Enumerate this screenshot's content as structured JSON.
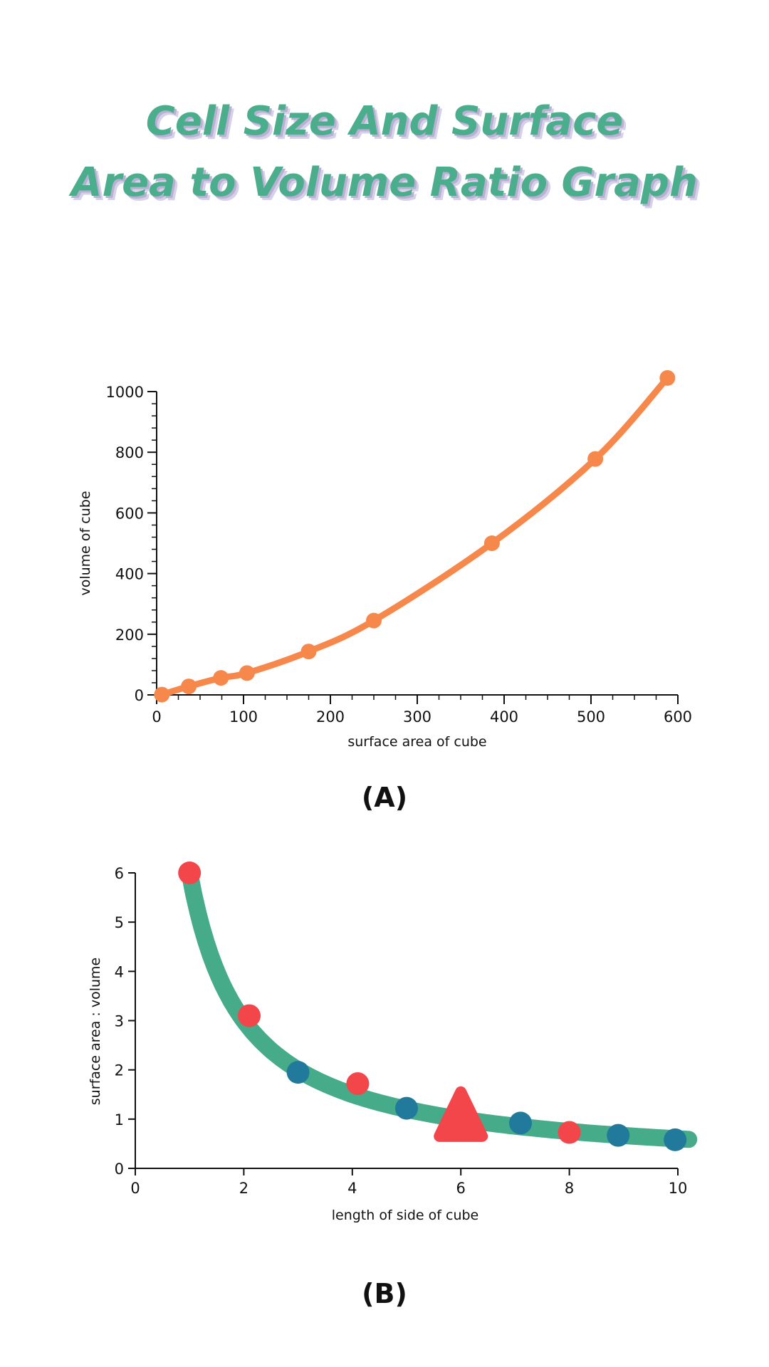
{
  "title": {
    "line1": "Cell Size And Surface",
    "line2": "Area to Volume Ratio Graph"
  },
  "colors": {
    "title": "#4aae8c",
    "title_shadow": "#b9b0d4",
    "chart_a_line": "#f5884a",
    "chart_b_line": "#45ab88",
    "chart_b_red": "#f2464a",
    "chart_b_blue": "#217a9b"
  },
  "chart_data": [
    {
      "type": "line",
      "caption": "(A)",
      "xlabel": "surface area of cube",
      "ylabel": "volume of cube",
      "xlim": [
        0,
        600
      ],
      "ylim": [
        0,
        1000
      ],
      "xticks": [
        0,
        100,
        200,
        300,
        400,
        500,
        600
      ],
      "yticks": [
        0,
        200,
        400,
        600,
        800,
        1000
      ],
      "points": [
        {
          "x": 6,
          "y": 1
        },
        {
          "x": 37,
          "y": 28
        },
        {
          "x": 74,
          "y": 56
        },
        {
          "x": 104,
          "y": 72
        },
        {
          "x": 175,
          "y": 143
        },
        {
          "x": 250,
          "y": 245
        },
        {
          "x": 386,
          "y": 500
        },
        {
          "x": 505,
          "y": 778
        },
        {
          "x": 588,
          "y": 1045
        }
      ],
      "grid": false
    },
    {
      "type": "scatter",
      "caption": "(B)",
      "xlabel": "length of side of cube",
      "ylabel": "surface area : volume",
      "xlim": [
        0,
        10
      ],
      "ylim": [
        0,
        6
      ],
      "xticks": [
        0,
        2,
        4,
        6,
        8,
        10
      ],
      "yticks": [
        0,
        1,
        2,
        3,
        4,
        5,
        6
      ],
      "curve": "y = 6 / x",
      "curve_x_range": [
        1,
        10.2
      ],
      "points": [
        {
          "x": 1,
          "y": 6.0,
          "color": "red"
        },
        {
          "x": 2.1,
          "y": 3.1,
          "color": "red"
        },
        {
          "x": 3.0,
          "y": 1.95,
          "color": "blue"
        },
        {
          "x": 4.1,
          "y": 1.72,
          "color": "red"
        },
        {
          "x": 5.0,
          "y": 1.22,
          "color": "blue"
        },
        {
          "x": 6.0,
          "y": 1.0,
          "color": "red",
          "marker": "triangle"
        },
        {
          "x": 7.1,
          "y": 0.92,
          "color": "blue"
        },
        {
          "x": 8.0,
          "y": 0.73,
          "color": "red"
        },
        {
          "x": 8.9,
          "y": 0.67,
          "color": "blue"
        },
        {
          "x": 9.95,
          "y": 0.58,
          "color": "blue"
        }
      ],
      "grid": false
    }
  ]
}
